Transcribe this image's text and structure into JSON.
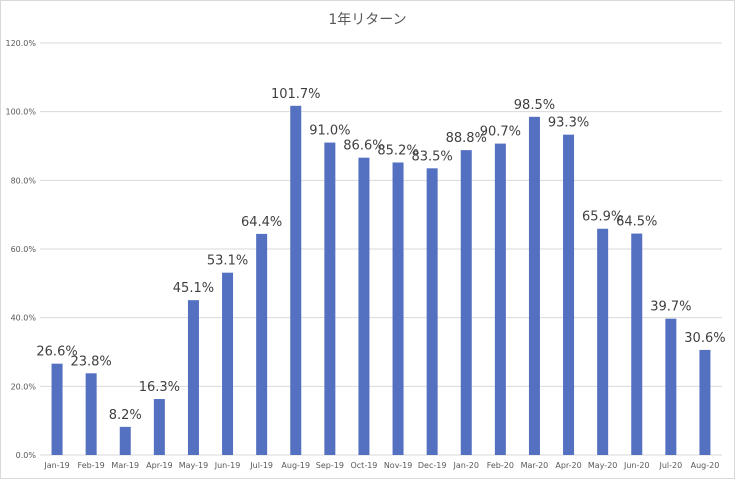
{
  "chart_data": {
    "type": "bar",
    "title": "1年リターン",
    "xlabel": "",
    "ylabel": "",
    "ylim": [
      0,
      120
    ],
    "yticks": [
      "0.0%",
      "20.0%",
      "40.0%",
      "60.0%",
      "80.0%",
      "100.0%",
      "120.0%"
    ],
    "grid": true,
    "bar_color": "#5470c1",
    "categories": [
      "Jan-19",
      "Feb-19",
      "Mar-19",
      "Apr-19",
      "May-19",
      "Jun-19",
      "Jul-19",
      "Aug-19",
      "Sep-19",
      "Oct-19",
      "Nov-19",
      "Dec-19",
      "Jan-20",
      "Feb-20",
      "Mar-20",
      "Apr-20",
      "May-20",
      "Jun-20",
      "Jul-20",
      "Aug-20"
    ],
    "values": [
      26.6,
      23.8,
      8.2,
      16.3,
      45.1,
      53.1,
      64.4,
      101.7,
      91.0,
      86.6,
      85.2,
      83.5,
      88.8,
      90.7,
      98.5,
      93.3,
      65.9,
      64.5,
      39.7,
      30.6
    ],
    "data_labels": [
      "26.6%",
      "23.8%",
      "8.2%",
      "16.3%",
      "45.1%",
      "53.1%",
      "64.4%",
      "101.7%",
      "91.0%",
      "86.6%",
      "85.2%",
      "83.5%",
      "88.8%",
      "90.7%",
      "98.5%",
      "93.3%",
      "65.9%",
      "64.5%",
      "39.7%",
      "30.6%"
    ]
  }
}
